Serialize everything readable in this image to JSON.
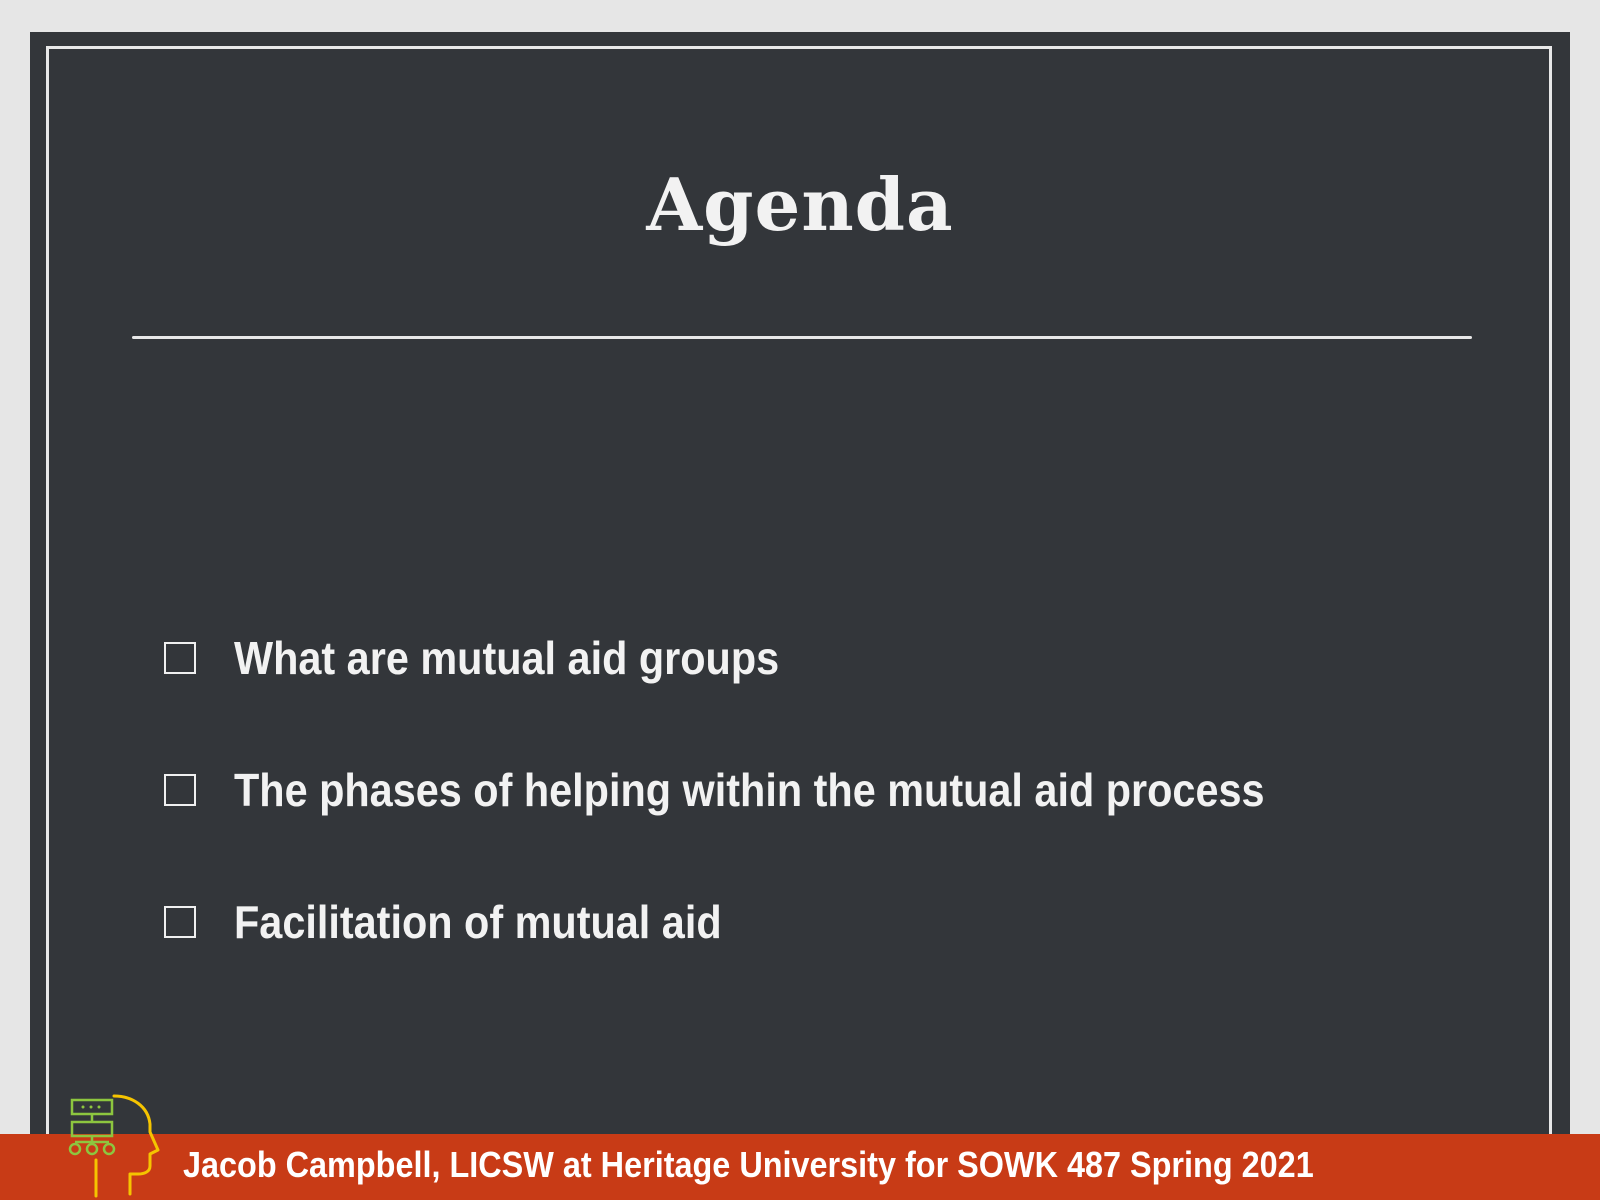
{
  "slide": {
    "title": "Agenda",
    "agenda_items": [
      "What are mutual aid groups",
      "The phases of helping within the mutual aid process",
      "Facilitation of mutual aid"
    ]
  },
  "footer": {
    "text": "Jacob Campbell, LICSW at Heritage University for SOWK 487 Spring 2021"
  },
  "logo": {
    "icon": "head-network-logo-icon"
  },
  "colors": {
    "slide_background": "#33363a",
    "text": "#f2f2f2",
    "footer_background": "#c83b16",
    "logo_green": "#8dc63f",
    "logo_yellow": "#f5c400"
  }
}
